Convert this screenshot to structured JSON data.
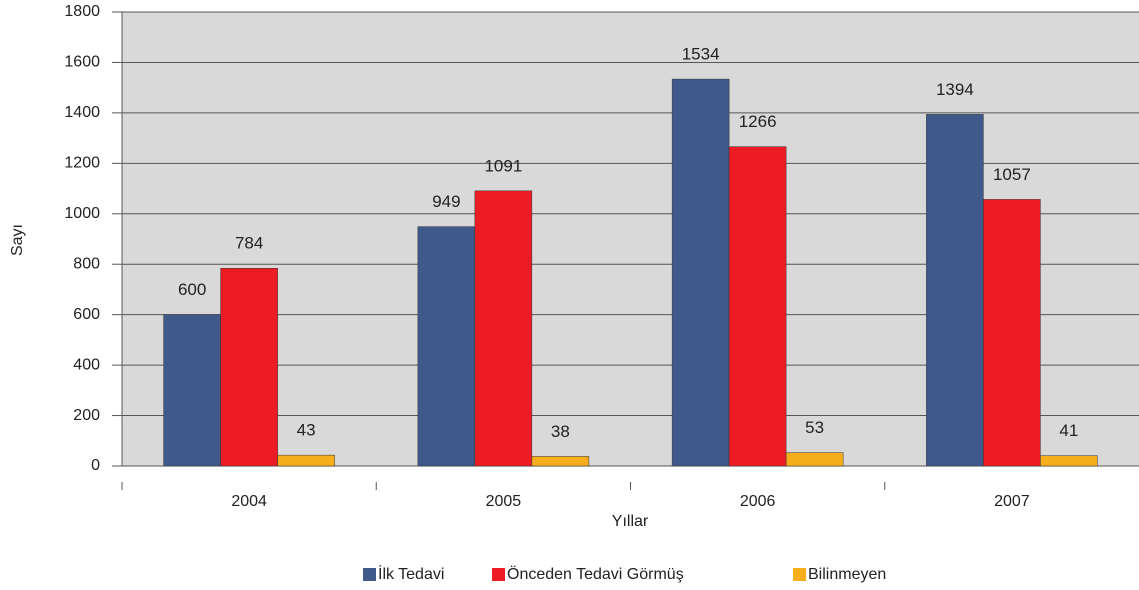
{
  "chart_data": {
    "type": "bar",
    "xlabel": "Yıllar",
    "ylabel": "Sayı",
    "categories": [
      "2004",
      "2005",
      "2006",
      "2007"
    ],
    "series": [
      {
        "name": "İlk Tedavi",
        "color": "#3f5a8a",
        "values": [
          600,
          949,
          1534,
          1394
        ]
      },
      {
        "name": "Önceden Tedavi Görmüş",
        "color": "#ed1c24",
        "values": [
          784,
          1091,
          1266,
          1057
        ]
      },
      {
        "name": "Bilinmeyen",
        "color": "#f6ae1c",
        "values": [
          43,
          38,
          53,
          41
        ]
      }
    ],
    "ylim": [
      0,
      1800
    ],
    "yticks": [
      0,
      200,
      400,
      600,
      800,
      1000,
      1200,
      1400,
      1600,
      1800
    ],
    "grid": true,
    "legend": "bottom"
  }
}
